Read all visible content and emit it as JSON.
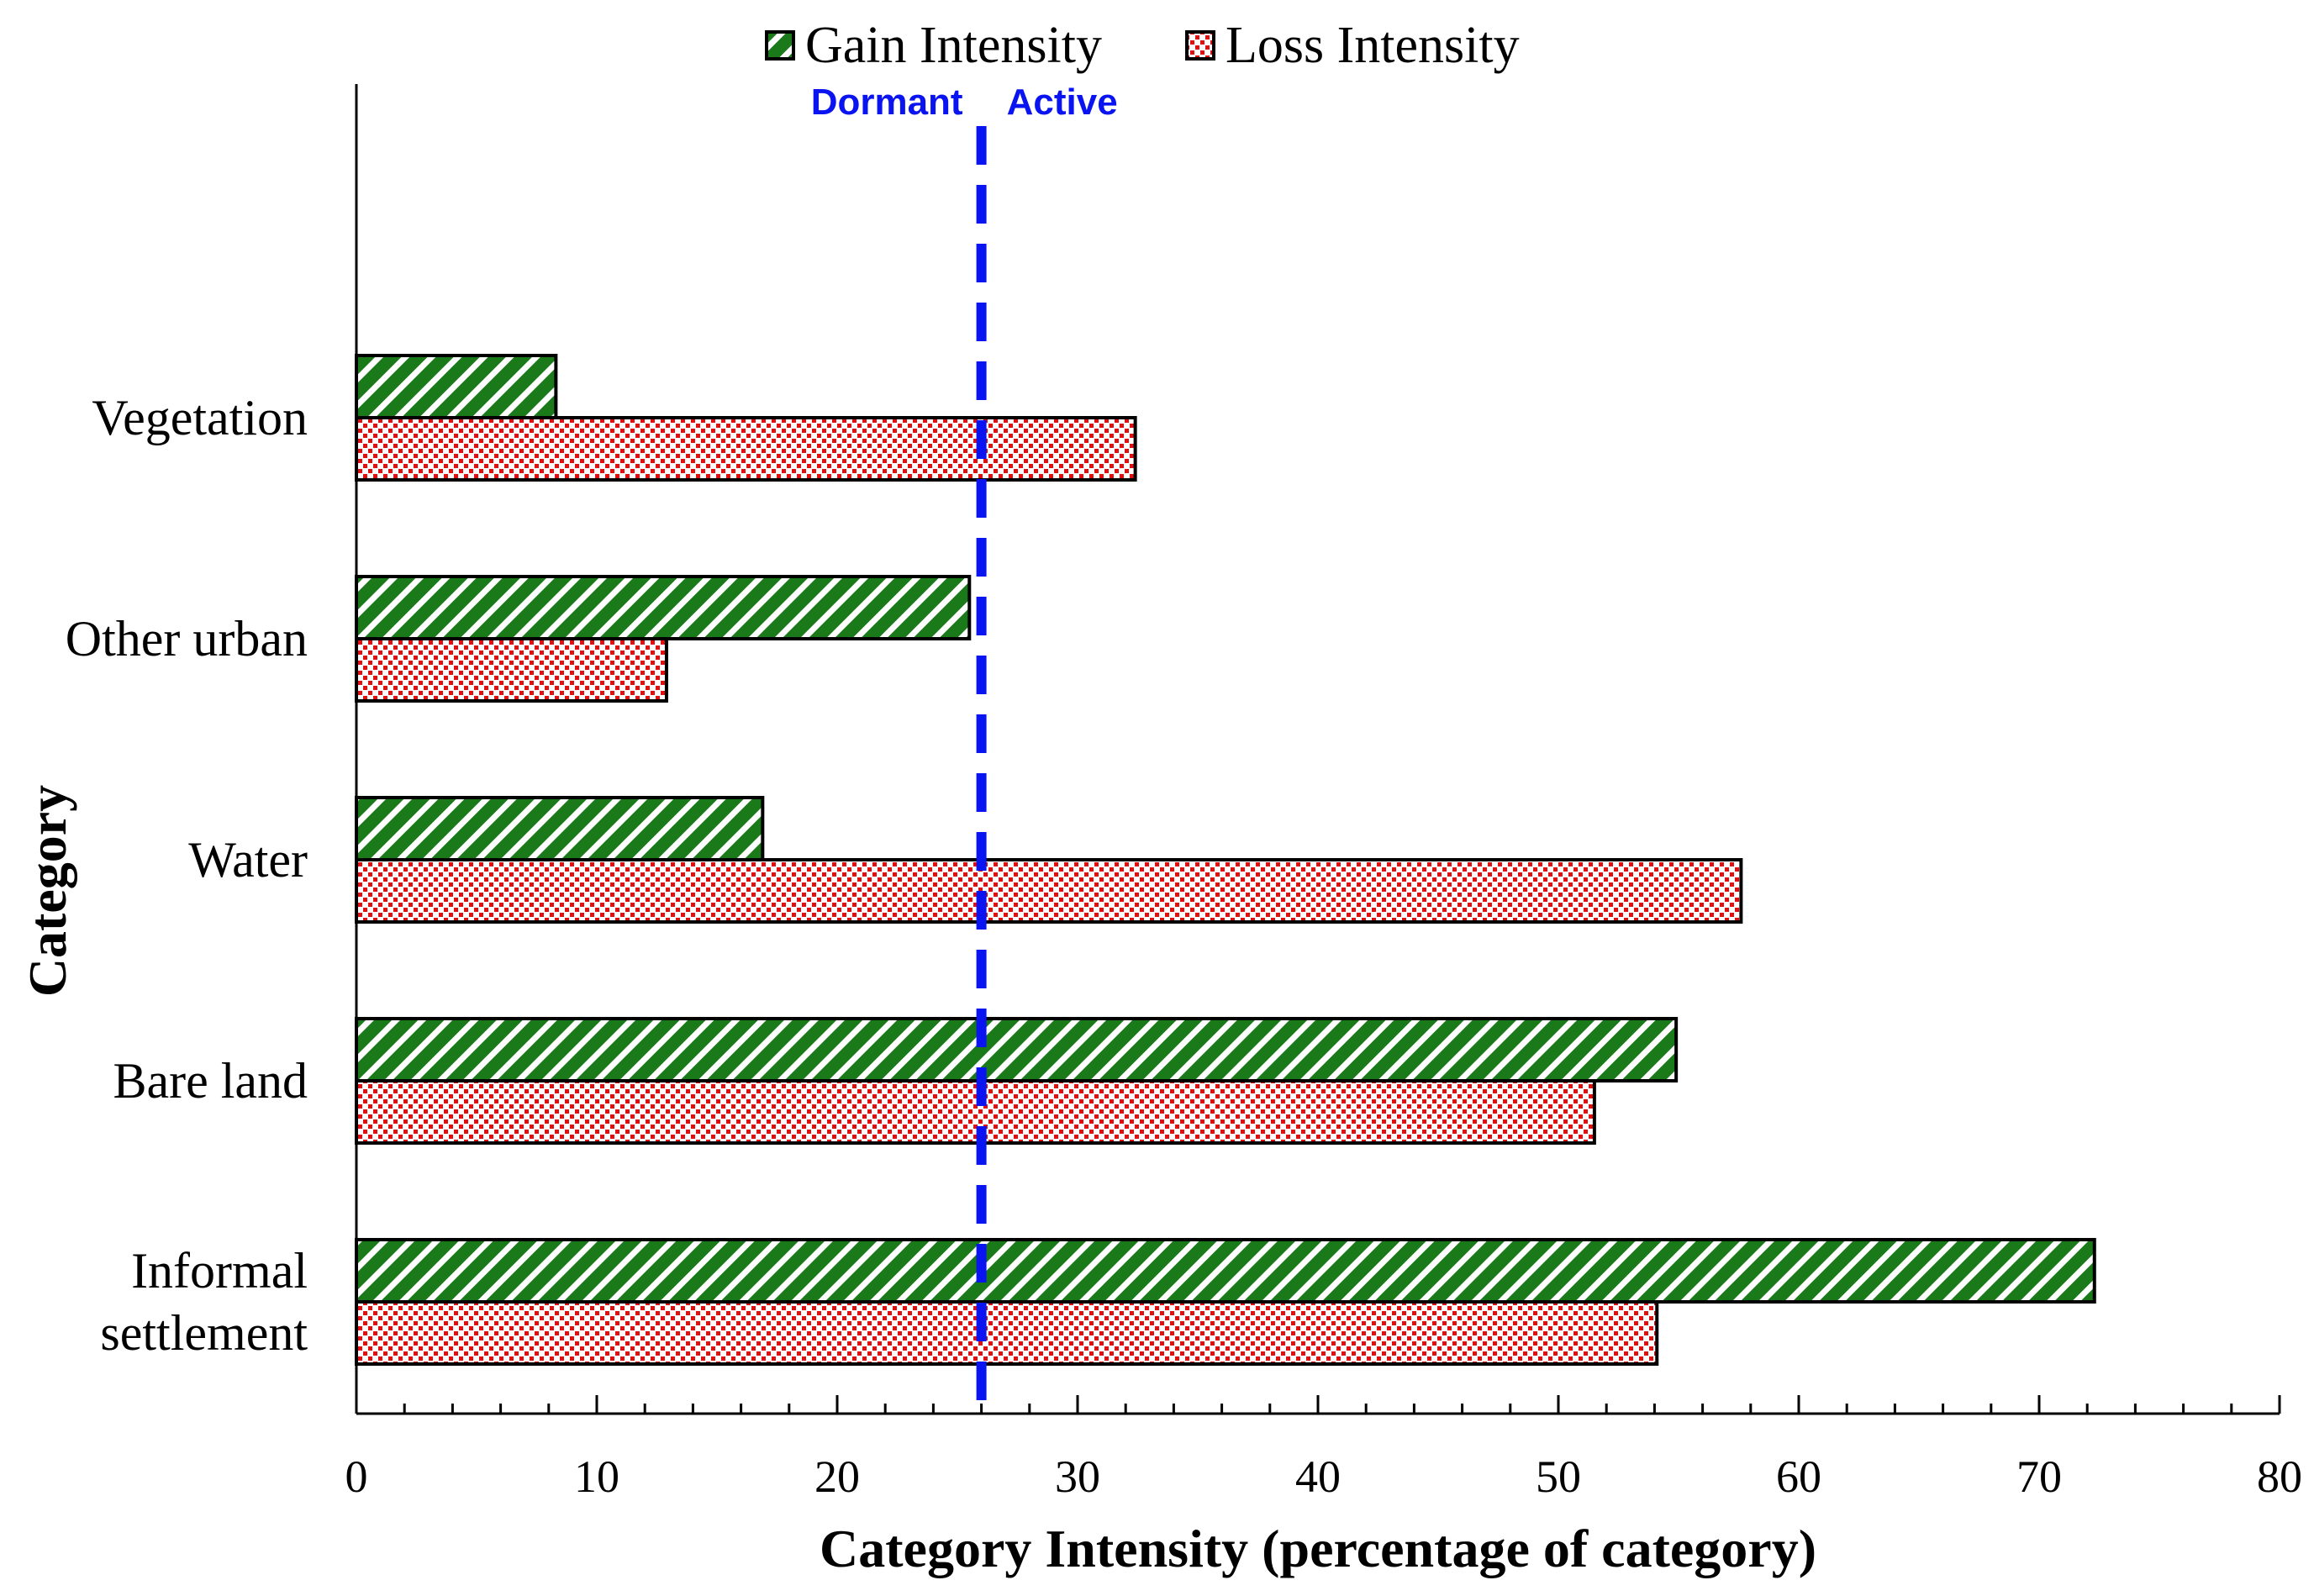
{
  "chart_data": {
    "type": "bar",
    "orientation": "horizontal",
    "title": "",
    "categories": [
      "Vegetation",
      "Other urban",
      "Water",
      "Bare land",
      "Informal settlement"
    ],
    "category_labels": [
      [
        "Vegetation"
      ],
      [
        "Other urban"
      ],
      [
        "Water"
      ],
      [
        "Bare land"
      ],
      [
        "Informal",
        "settlement"
      ]
    ],
    "series": [
      {
        "name": "Gain Intensity",
        "values": [
          8.3,
          25.5,
          16.9,
          54.9,
          72.3
        ],
        "color": "#1a7a1a",
        "pattern": "diagonal-stripes"
      },
      {
        "name": "Loss Intensity",
        "values": [
          32.4,
          12.9,
          57.6,
          51.5,
          54.1
        ],
        "color": "#e01010",
        "pattern": "dots"
      }
    ],
    "xlabel": "Category Intensity (percentage of category)",
    "ylabel": "Category",
    "xlim": [
      0,
      80
    ],
    "xticks": [
      0,
      10,
      20,
      30,
      40,
      50,
      60,
      70,
      80
    ],
    "grid": false,
    "legend": "top-center",
    "reference_line": {
      "value": 26.0,
      "style": "dashed",
      "color": "#0a14f0",
      "left_label": "Dormant",
      "right_label": "Active"
    }
  }
}
